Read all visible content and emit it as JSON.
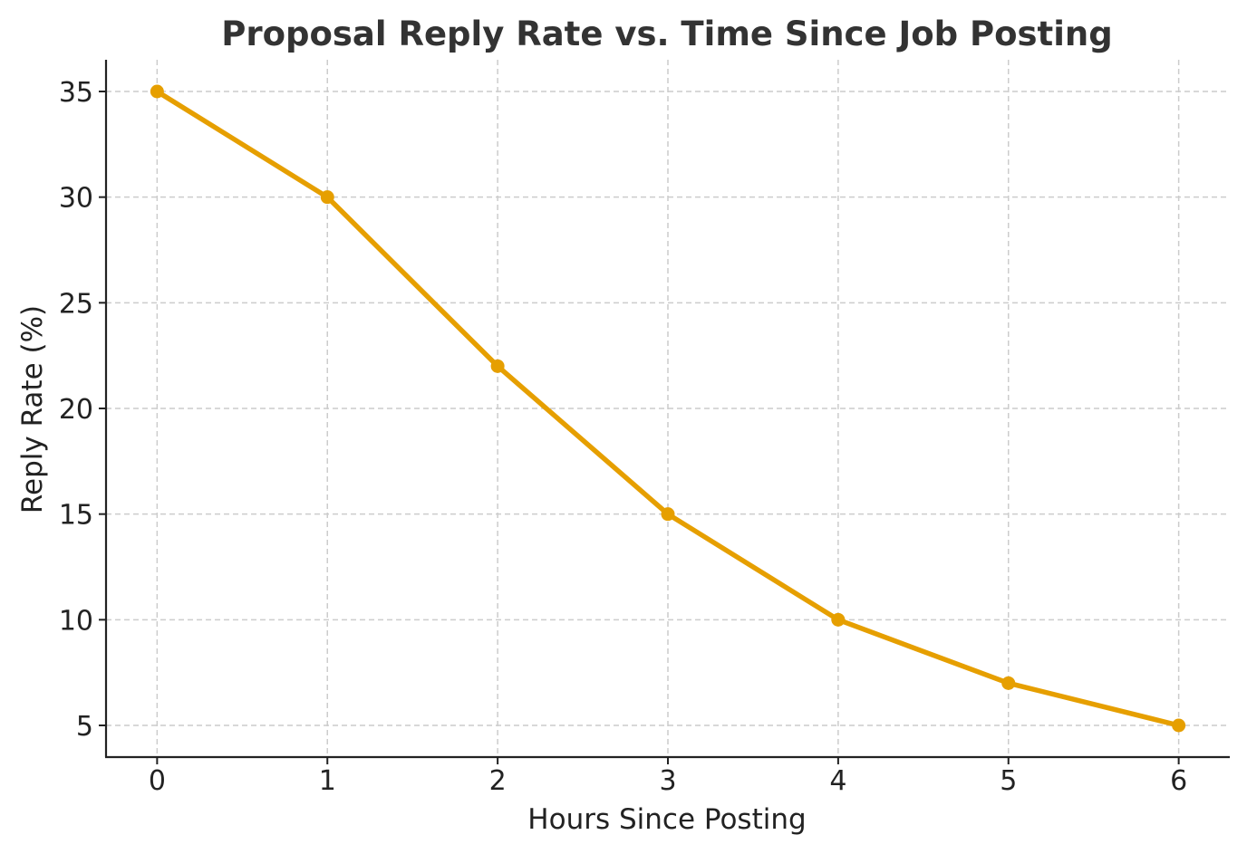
{
  "chart_data": {
    "type": "line",
    "title": "Proposal Reply Rate vs. Time Since Job Posting",
    "xlabel": "Hours Since Posting",
    "ylabel": "Reply Rate (%)",
    "x": [
      0,
      1,
      2,
      3,
      4,
      5,
      6
    ],
    "values": [
      35,
      30,
      22,
      15,
      10,
      7,
      5
    ],
    "xlim": [
      -0.3,
      6.3
    ],
    "ylim": [
      3.5,
      36.5
    ],
    "xticks": [
      "0",
      "1",
      "2",
      "3",
      "4",
      "5",
      "6"
    ],
    "yticks": [
      "5",
      "10",
      "15",
      "20",
      "25",
      "30",
      "35"
    ],
    "grid": true,
    "line_color": "#E69F00",
    "marker": "circle"
  }
}
